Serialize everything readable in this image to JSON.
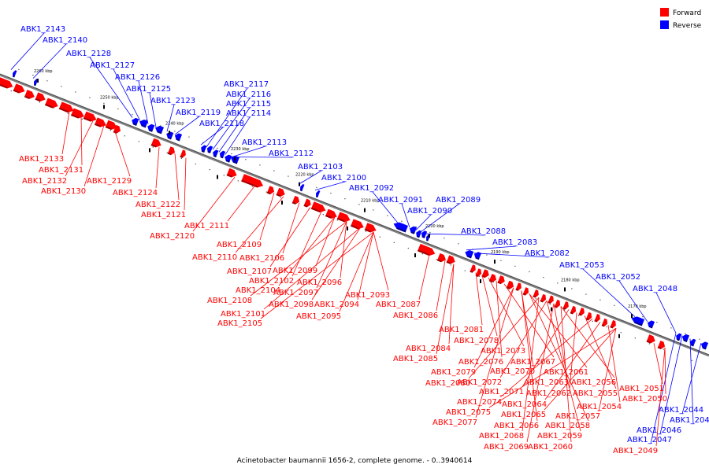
{
  "caption": "Acinetobacter baumannii 1656-2, complete genome. - 0..3940614",
  "legend": [
    {
      "label": "Forward",
      "color": "#ff0000"
    },
    {
      "label": "Reverse",
      "color": "#0000ff"
    }
  ],
  "colors": {
    "forward": "#ff0000",
    "forward_dark": "#a00000",
    "reverse": "#0000ff",
    "reverse_dark": "#00008a",
    "backbone": "#808080",
    "tick": "#000000"
  },
  "scale_ticks": [
    "2260 kbp",
    "2250 kbp",
    "2240 kbp",
    "2230 kbp",
    "2220 kbp",
    "2210 kbp",
    "2200 kbp",
    "2190 kbp",
    "2180 kbp",
    "2170 kbp"
  ],
  "genes": {
    "reverse": [
      "ABK1_2143",
      "ABK1_2140",
      "ABK1_2128",
      "ABK1_2127",
      "ABK1_2126",
      "ABK1_2125",
      "ABK1_2123",
      "ABK1_2119",
      "ABK1_2118",
      "ABK1_2117",
      "ABK1_2116",
      "ABK1_2115",
      "ABK1_2114",
      "ABK1_2113",
      "ABK1_2112",
      "ABK1_2103",
      "ABK1_2100",
      "ABK1_2092",
      "ABK1_2091",
      "ABK1_2090",
      "ABK1_2089",
      "ABK1_2088",
      "ABK1_2083",
      "ABK1_2082",
      "ABK1_2053",
      "ABK1_2052",
      "ABK1_2048",
      "ABK1_2044",
      "ABK1_2045",
      "ABK1_2046",
      "ABK1_2047"
    ],
    "forward": [
      "ABK1_2133",
      "ABK1_2131",
      "ABK1_2132",
      "ABK1_2130",
      "ABK1_2129",
      "ABK1_2124",
      "ABK1_2122",
      "ABK1_2121",
      "ABK1_2120",
      "ABK1_2111",
      "ABK1_2109",
      "ABK1_2110",
      "ABK1_2106",
      "ABK1_2107",
      "ABK1_2102",
      "ABK1_2104",
      "ABK1_2108",
      "ABK1_2101",
      "ABK1_2105",
      "ABK1_2099",
      "ABK1_2096",
      "ABK1_2097",
      "ABK1_2098",
      "ABK1_2094",
      "ABK1_2095",
      "ABK1_2093",
      "ABK1_2087",
      "ABK1_2086",
      "ABK1_2084",
      "ABK1_2085",
      "ABK1_2081",
      "ABK1_2078",
      "ABK1_2073",
      "ABK1_2076",
      "ABK1_2067",
      "ABK1_2079",
      "ABK1_2070",
      "ABK1_2061",
      "ABK1_2080",
      "ABK1_2072",
      "ABK1_2063",
      "ABK1_2056",
      "ABK1_2071",
      "ABK1_2062",
      "ABK1_2055",
      "ABK1_2074",
      "ABK1_2064",
      "ABK1_2054",
      "ABK1_2075",
      "ABK1_2065",
      "ABK1_2057",
      "ABK1_2077",
      "ABK1_2066",
      "ABK1_2058",
      "ABK1_2068",
      "ABK1_2059",
      "ABK1_2069",
      "ABK1_2060",
      "ABK1_2051",
      "ABK1_2050",
      "ABK1_2049"
    ]
  }
}
